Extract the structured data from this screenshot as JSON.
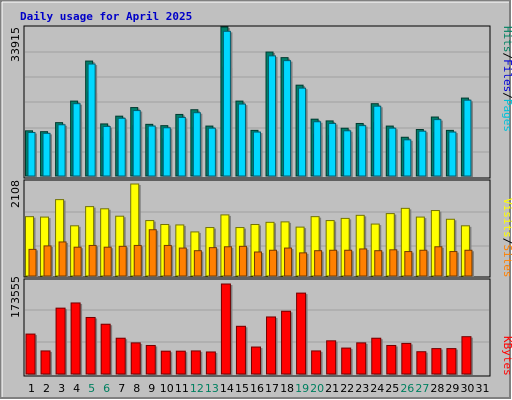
{
  "chart_data": {
    "type": "bar",
    "title": "Daily usage for April 2025",
    "x": [
      "1",
      "2",
      "3",
      "4",
      "5",
      "6",
      "7",
      "8",
      "9",
      "10",
      "11",
      "12",
      "13",
      "14",
      "15",
      "16",
      "17",
      "18",
      "19",
      "20",
      "21",
      "22",
      "23",
      "24",
      "25",
      "26",
      "27",
      "28",
      "29",
      "30",
      "31"
    ],
    "weekend_days": [
      5,
      6,
      12,
      13,
      19,
      20,
      26,
      27
    ],
    "panels": [
      {
        "name": "hits_files_pages",
        "max_label": "33915",
        "ylim": [
          0,
          33915
        ],
        "legend": [
          {
            "text": "Pages",
            "color": "#00c0d8"
          },
          {
            "text": "Files",
            "color": "#0000d8"
          },
          {
            "text": "Hits",
            "color": "#008060"
          }
        ],
        "series": [
          {
            "name": "Hits",
            "color": "#00806a",
            "values": [
              10500,
              10300,
              12400,
              17400,
              26700,
              12100,
              13900,
              15900,
              12000,
              11700,
              14300,
              15400,
              11600,
              34600,
              17400,
              10600,
              28800,
              27500,
              21100,
              13200,
              12800,
              11100,
              12200,
              16800,
              11600,
              9000,
              10800,
              13700,
              10600,
              18100,
              0
            ]
          },
          {
            "name": "Files",
            "color": "#0000d8",
            "values": [
              7800,
              7600,
              9300,
              12800,
              19500,
              9000,
              10300,
              11700,
              8900,
              8600,
              10500,
              11300,
              8600,
              25300,
              12800,
              7800,
              21100,
              20200,
              15500,
              9700,
              9400,
              8200,
              9000,
              12400,
              8600,
              6700,
              8000,
              10100,
              7900,
              13300,
              0
            ]
          },
          {
            "name": "Pages",
            "color": "#00d8ff",
            "values": [
              10100,
              9900,
              11900,
              16800,
              26000,
              11500,
              13400,
              15200,
              11600,
              11200,
              13600,
              14700,
              11100,
              33600,
              16700,
              10200,
              27900,
              26800,
              20400,
              12600,
              12200,
              10500,
              11700,
              16200,
              11100,
              8400,
              10400,
              13100,
              10200,
              17600,
              0
            ]
          }
        ]
      },
      {
        "name": "visits_sites",
        "max_label": "2108",
        "ylim": [
          0,
          2108
        ],
        "legend": [
          {
            "text": "Sites",
            "color": "#ff8000"
          },
          {
            "text": "Visits",
            "color": "#ffff00"
          }
        ],
        "series": [
          {
            "name": "Visits",
            "color": "#ffff00",
            "values": [
              1360,
              1350,
              1750,
              1150,
              1590,
              1540,
              1370,
              2108,
              1270,
              1180,
              1170,
              1010,
              1110,
              1400,
              1110,
              1180,
              1230,
              1240,
              1120,
              1360,
              1270,
              1320,
              1390,
              1190,
              1430,
              1550,
              1350,
              1500,
              1300,
              1150,
              0
            ]
          },
          {
            "name": "Sites",
            "color": "#ff8000",
            "values": [
              610,
              690,
              780,
              660,
              700,
              660,
              680,
              700,
              1060,
              700,
              640,
              580,
              650,
              670,
              680,
              550,
              590,
              640,
              530,
              580,
              590,
              590,
              620,
              580,
              600,
              560,
              590,
              670,
              560,
              590,
              0
            ]
          }
        ]
      },
      {
        "name": "kbytes",
        "max_label": "173555",
        "ylim": [
          0,
          173555
        ],
        "legend": [
          {
            "text": "KBytes",
            "color": "#ff0000"
          }
        ],
        "series": [
          {
            "name": "KBytes",
            "color": "#ff0000",
            "values": [
              77000,
              44500,
              127000,
              137000,
              109000,
              96000,
              69000,
              60000,
              55000,
              44000,
              44000,
              44500,
              42500,
              173555,
              92000,
              52000,
              110000,
              121000,
              156000,
              44500,
              64000,
              50000,
              60000,
              69000,
              55000,
              59000,
              43000,
              49000,
              49000,
              72000,
              0
            ]
          }
        ]
      }
    ]
  }
}
